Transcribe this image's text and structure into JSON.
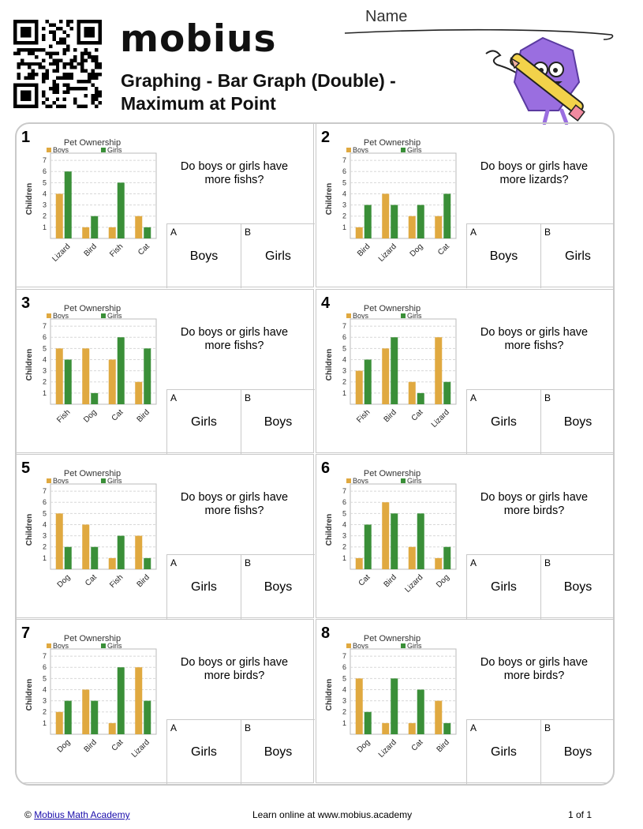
{
  "header": {
    "logo_text": "mobius",
    "title_line1": "Graphing - Bar Graph (Double) -",
    "title_line2": "Maximum at Point",
    "name_label": "Name"
  },
  "colors": {
    "boys": "#e0a940",
    "girls": "#3a8f38",
    "logo_accent": "#2ea3dc",
    "mascot": "#9a6ee0"
  },
  "problems": [
    {
      "number": "1",
      "question": "Do boys or girls have more fishs?",
      "option_a": "Boys",
      "option_b": "Girls"
    },
    {
      "number": "2",
      "question": "Do boys or girls have more lizards?",
      "option_a": "Boys",
      "option_b": "Girls"
    },
    {
      "number": "3",
      "question": "Do boys or girls have more fishs?",
      "option_a": "Girls",
      "option_b": "Boys"
    },
    {
      "number": "4",
      "question": "Do boys or girls have more fishs?",
      "option_a": "Girls",
      "option_b": "Boys"
    },
    {
      "number": "5",
      "question": "Do boys or girls have more fishs?",
      "option_a": "Girls",
      "option_b": "Boys"
    },
    {
      "number": "6",
      "question": "Do boys or girls have more birds?",
      "option_a": "Girls",
      "option_b": "Boys"
    },
    {
      "number": "7",
      "question": "Do boys or girls have more birds?",
      "option_a": "Girls",
      "option_b": "Boys"
    },
    {
      "number": "8",
      "question": "Do boys or girls have more birds?",
      "option_a": "Girls",
      "option_b": "Boys"
    }
  ],
  "chart_data": [
    {
      "type": "bar",
      "title": "Pet Ownership",
      "ylabel": "Children",
      "ylim": [
        0,
        7
      ],
      "yticks": [
        1,
        2,
        3,
        4,
        5,
        6,
        7
      ],
      "grid": true,
      "legend": "top",
      "categories": [
        "Lizard",
        "Bird",
        "Fish",
        "Cat"
      ],
      "series": [
        {
          "name": "Boys",
          "values": [
            4,
            1,
            1,
            2
          ]
        },
        {
          "name": "Girls",
          "values": [
            6,
            2,
            5,
            1
          ]
        }
      ]
    },
    {
      "type": "bar",
      "title": "Pet Ownership",
      "ylabel": "Children",
      "ylim": [
        0,
        7
      ],
      "yticks": [
        1,
        2,
        3,
        4,
        5,
        6,
        7
      ],
      "grid": true,
      "legend": "top",
      "categories": [
        "Bird",
        "Lizard",
        "Dog",
        "Cat"
      ],
      "series": [
        {
          "name": "Boys",
          "values": [
            1,
            4,
            2,
            2
          ]
        },
        {
          "name": "Girls",
          "values": [
            3,
            3,
            3,
            4
          ]
        }
      ]
    },
    {
      "type": "bar",
      "title": "Pet Ownership",
      "ylabel": "Children",
      "ylim": [
        0,
        7
      ],
      "yticks": [
        1,
        2,
        3,
        4,
        5,
        6,
        7
      ],
      "grid": true,
      "legend": "top",
      "categories": [
        "Fish",
        "Dog",
        "Cat",
        "Bird"
      ],
      "series": [
        {
          "name": "Boys",
          "values": [
            5,
            5,
            4,
            2
          ]
        },
        {
          "name": "Girls",
          "values": [
            4,
            1,
            6,
            5
          ]
        }
      ]
    },
    {
      "type": "bar",
      "title": "Pet Ownership",
      "ylabel": "Children",
      "ylim": [
        0,
        7
      ],
      "yticks": [
        1,
        2,
        3,
        4,
        5,
        6,
        7
      ],
      "grid": true,
      "legend": "top",
      "categories": [
        "Fish",
        "Bird",
        "Cat",
        "Lizard"
      ],
      "series": [
        {
          "name": "Boys",
          "values": [
            3,
            5,
            2,
            6
          ]
        },
        {
          "name": "Girls",
          "values": [
            4,
            6,
            1,
            2
          ]
        }
      ]
    },
    {
      "type": "bar",
      "title": "Pet Ownership",
      "ylabel": "Children",
      "ylim": [
        0,
        7
      ],
      "yticks": [
        1,
        2,
        3,
        4,
        5,
        6,
        7
      ],
      "grid": true,
      "legend": "top",
      "categories": [
        "Dog",
        "Cat",
        "Fish",
        "Bird"
      ],
      "series": [
        {
          "name": "Boys",
          "values": [
            5,
            4,
            1,
            3
          ]
        },
        {
          "name": "Girls",
          "values": [
            2,
            2,
            3,
            1
          ]
        }
      ]
    },
    {
      "type": "bar",
      "title": "Pet Ownership",
      "ylabel": "Children",
      "ylim": [
        0,
        7
      ],
      "yticks": [
        1,
        2,
        3,
        4,
        5,
        6,
        7
      ],
      "grid": true,
      "legend": "top",
      "categories": [
        "Cat",
        "Bird",
        "Lizard",
        "Dog"
      ],
      "series": [
        {
          "name": "Boys",
          "values": [
            1,
            6,
            2,
            1
          ]
        },
        {
          "name": "Girls",
          "values": [
            4,
            5,
            5,
            2
          ]
        }
      ]
    },
    {
      "type": "bar",
      "title": "Pet Ownership",
      "ylabel": "Children",
      "ylim": [
        0,
        7
      ],
      "yticks": [
        1,
        2,
        3,
        4,
        5,
        6,
        7
      ],
      "grid": true,
      "legend": "top",
      "categories": [
        "Dog",
        "Bird",
        "Cat",
        "Lizard"
      ],
      "series": [
        {
          "name": "Boys",
          "values": [
            2,
            4,
            1,
            6
          ]
        },
        {
          "name": "Girls",
          "values": [
            3,
            3,
            6,
            3
          ]
        }
      ]
    },
    {
      "type": "bar",
      "title": "Pet Ownership",
      "ylabel": "Children",
      "ylim": [
        0,
        7
      ],
      "yticks": [
        1,
        2,
        3,
        4,
        5,
        6,
        7
      ],
      "grid": true,
      "legend": "top",
      "categories": [
        "Dog",
        "Lizard",
        "Cat",
        "Bird"
      ],
      "series": [
        {
          "name": "Boys",
          "values": [
            5,
            1,
            1,
            3
          ]
        },
        {
          "name": "Girls",
          "values": [
            2,
            5,
            4,
            1
          ]
        }
      ]
    }
  ],
  "footer": {
    "copyright_symbol": "©",
    "copyright_link": "Mobius Math Academy",
    "center": "Learn online at www.mobius.academy",
    "page": "1 of 1"
  }
}
